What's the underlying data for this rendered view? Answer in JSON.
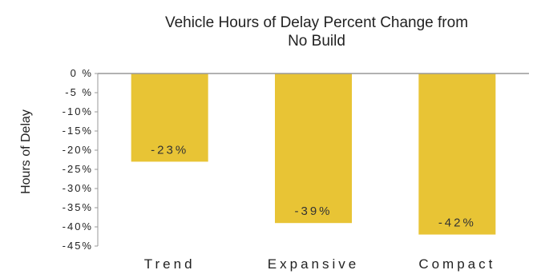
{
  "chart_data": {
    "type": "bar",
    "title_lines": [
      "Vehicle Hours of Delay Percent Change from",
      "No Build"
    ],
    "ylabel": "Hours of Delay",
    "xlabel": "",
    "categories": [
      "Trend",
      "Expansive",
      "Compact"
    ],
    "values": [
      -23,
      -39,
      -42
    ],
    "data_labels": [
      "-23%",
      "-39%",
      "-42%"
    ],
    "ylim": [
      -45,
      0
    ],
    "yticks": [
      0,
      -5,
      -10,
      -15,
      -20,
      -25,
      -30,
      -35,
      -40,
      -45
    ],
    "ytick_labels": [
      "0 %",
      "-5 %",
      "-10%",
      "-15%",
      "-20%",
      "-25%",
      "-30%",
      "-35%",
      "-40%",
      "-45%"
    ],
    "bar_color": "#e8c435",
    "axis_color": "#999999",
    "grid": false,
    "legend": "none"
  }
}
